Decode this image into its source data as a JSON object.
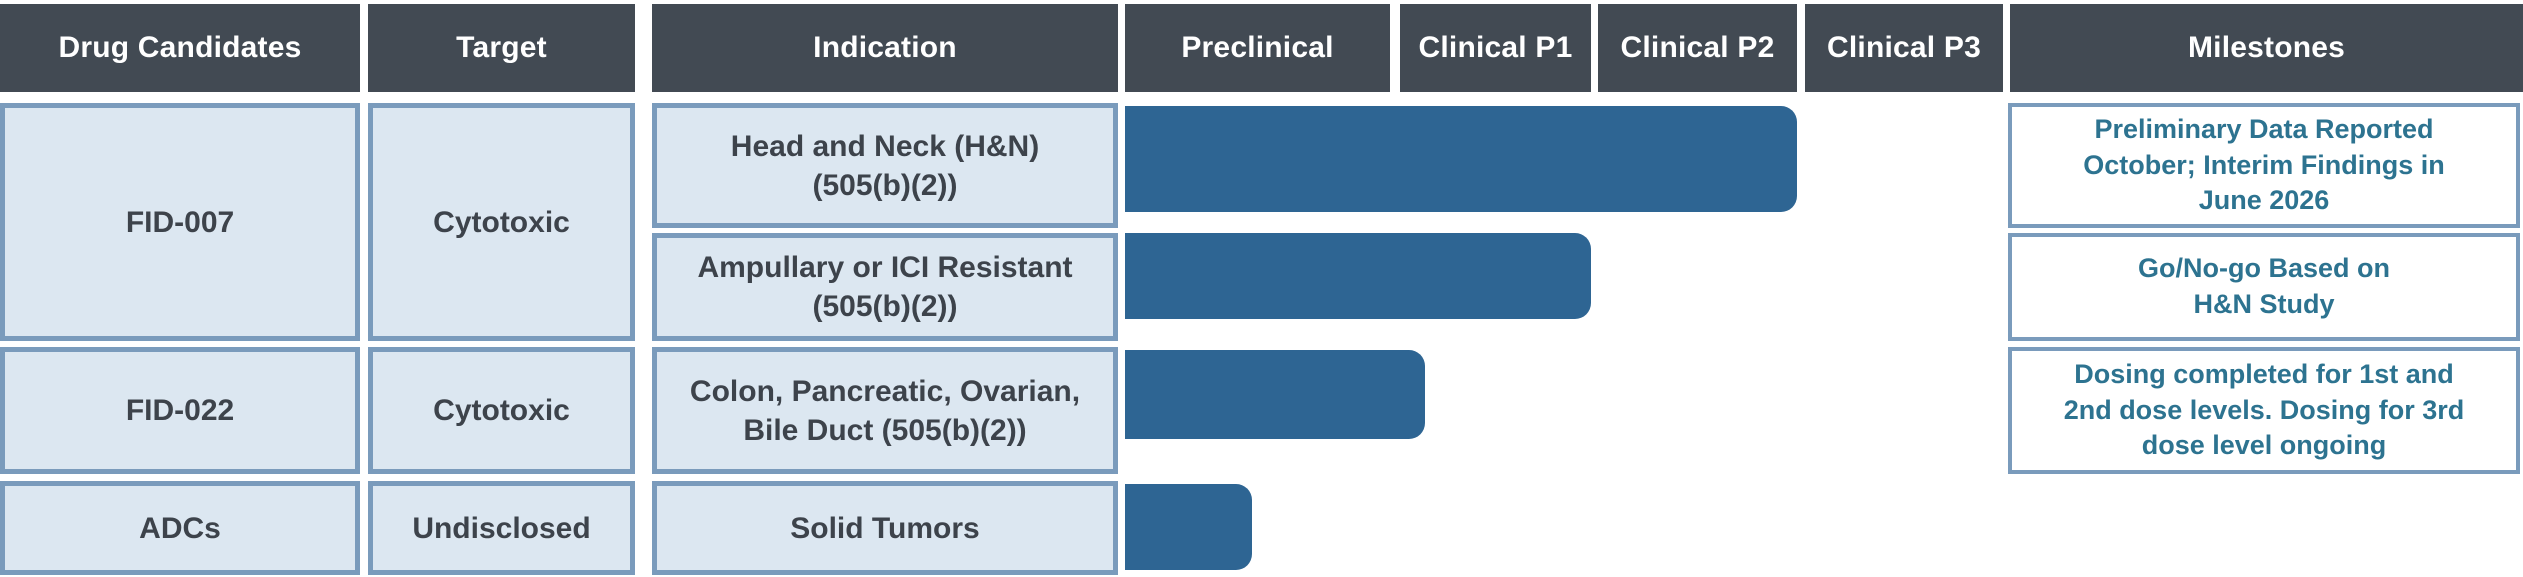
{
  "colors": {
    "header_bg": "#424a53",
    "bar": "#2e6593",
    "cell_bg": "#dce7f1",
    "cell_border": "#7a9bbc",
    "cell_text": "#3d434b",
    "milestone_text": "#2d7390"
  },
  "columns": [
    {
      "label": "Drug Candidates"
    },
    {
      "label": "Target"
    },
    {
      "label": "Indication"
    },
    {
      "label": "Preclinical"
    },
    {
      "label": "Clinical P1"
    },
    {
      "label": "Clinical P2"
    },
    {
      "label": "Clinical P3"
    },
    {
      "label": "Milestones"
    }
  ],
  "drugs": [
    {
      "name": "FID-007",
      "target": "Cytotoxic"
    },
    {
      "name": "FID-022",
      "target": "Cytotoxic"
    },
    {
      "name": "ADCs",
      "target": "Undisclosed"
    }
  ],
  "indications": [
    {
      "text": "Head and Neck (H&N)\n(505(b)(2))"
    },
    {
      "text": "Ampullary or ICI Resistant\n(505(b)(2))"
    },
    {
      "text": "Colon, Pancreatic, Ovarian,\nBile Duct (505(b)(2))"
    },
    {
      "text": "Solid Tumors"
    }
  ],
  "milestones": [
    {
      "text": "Preliminary Data Reported\nOctober; Interim Findings in\nJune 2026"
    },
    {
      "text": "Go/No-go Based on\nH&N Study"
    },
    {
      "text": "Dosing completed for 1st and\n2nd dose levels.  Dosing for 3rd\ndose level ongoing"
    }
  ],
  "chart_data": {
    "type": "bar",
    "orientation": "horizontal",
    "phases": [
      "Preclinical",
      "Clinical P1",
      "Clinical P2",
      "Clinical P3"
    ],
    "progress_scale": "0 = start of Preclinical, 1 = end of Preclinical, 2 = end of Clinical P1, 3 = end of Clinical P2, 4 = end of Clinical P3",
    "rows": [
      {
        "drug": "FID-007",
        "target": "Cytotoxic",
        "indication": "Head and Neck (H&N) (505(b)(2))",
        "stage_reached": "through Clinical P2",
        "progress": 3.0,
        "milestone": "Preliminary Data Reported October; Interim Findings in June 2026"
      },
      {
        "drug": "FID-007",
        "target": "Cytotoxic",
        "indication": "Ampullary or ICI Resistant (505(b)(2))",
        "stage_reached": "through Clinical P1",
        "progress": 2.0,
        "milestone": "Go/No-go Based on H&N Study"
      },
      {
        "drug": "FID-022",
        "target": "Cytotoxic",
        "indication": "Colon, Pancreatic, Ovarian, Bile Duct (505(b)(2))",
        "stage_reached": "early Clinical P1",
        "progress": 1.13,
        "milestone": "Dosing completed for 1st and 2nd dose levels.  Dosing for 3rd dose level ongoing"
      },
      {
        "drug": "ADCs",
        "target": "Undisclosed",
        "indication": "Solid Tumors",
        "stage_reached": "mid Preclinical",
        "progress": 0.48,
        "milestone": ""
      }
    ]
  }
}
